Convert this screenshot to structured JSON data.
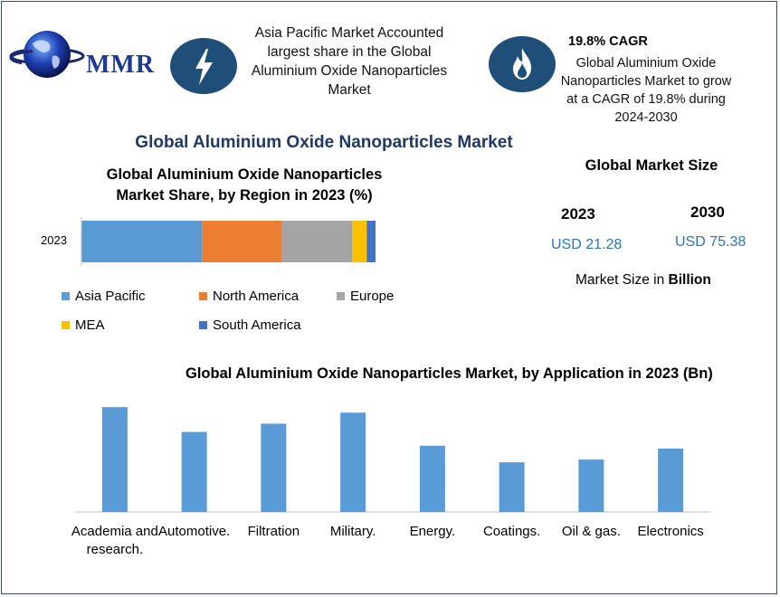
{
  "brand": {
    "logo_text": "MMR"
  },
  "callouts": {
    "left_text": "Asia Pacific Market Accounted largest share in the Global Aluminium Oxide Nanoparticles Market",
    "cagr_title": "19.8% CAGR",
    "cagr_text": "Global Aluminium Oxide Nanoparticles Market to grow at a CAGR of 19.8% during 2024-2030"
  },
  "main_title": "Global Aluminium Oxide Nanoparticles Market",
  "market_size": {
    "heading": "Global Market Size",
    "year1": "2023",
    "value1": "USD 21.28",
    "year2": "2030",
    "value2": "USD 75.38",
    "unit_prefix": "Market Size in ",
    "unit_bold": "Billion"
  },
  "colors": {
    "asia_pacific": "#5b9bd5",
    "north_america": "#ed7d31",
    "europe": "#a5a5a5",
    "mea": "#ffc000",
    "south_america": "#4472c4",
    "application_bar": "#5b9bd5",
    "icon_bg": "#1f4e79"
  },
  "chart_data": [
    {
      "type": "bar",
      "orientation": "horizontal-stacked",
      "title": "Global Aluminium Oxide Nanoparticles Market Share, by Region in 2023 (%)",
      "categories": [
        "2023"
      ],
      "series": [
        {
          "name": "Asia Pacific",
          "values": [
            41
          ]
        },
        {
          "name": "North America",
          "values": [
            27
          ]
        },
        {
          "name": "Europe",
          "values": [
            24
          ]
        },
        {
          "name": "MEA",
          "values": [
            5
          ]
        },
        {
          "name": "South America",
          "values": [
            3
          ]
        }
      ],
      "legend": "bottom"
    },
    {
      "type": "bar",
      "title": "Global Aluminium Oxide Nanoparticles Market, by Application in 2023 (Bn)",
      "categories": [
        "Academia and research.",
        "Automotive.",
        "Filtration",
        "Military.",
        "Energy.",
        "Coatings.",
        "Oil & gas.",
        "Electronics"
      ],
      "values": [
        3.8,
        2.9,
        3.2,
        3.6,
        2.4,
        1.8,
        1.9,
        2.3
      ],
      "ylim": [
        0,
        4
      ],
      "grid": false
    }
  ]
}
